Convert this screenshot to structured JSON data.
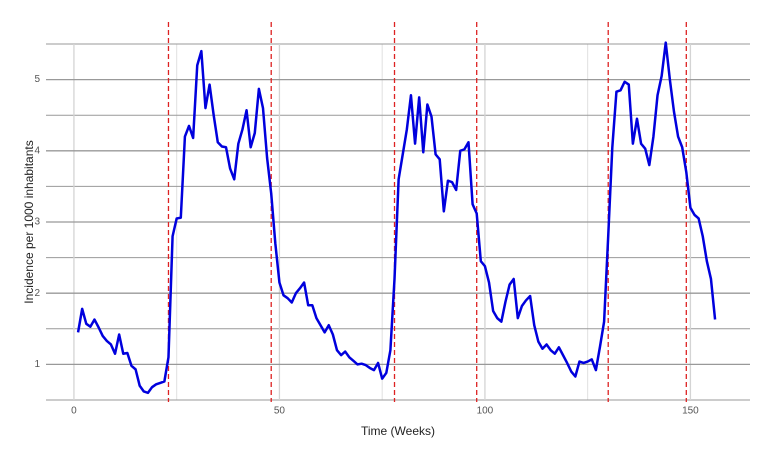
{
  "chart_data": {
    "type": "line",
    "x_label": "Time (Weeks)",
    "y_label": "Incidence per 1000 inhabitants",
    "x": [
      1,
      2,
      3,
      4,
      5,
      6,
      7,
      8,
      9,
      10,
      11,
      12,
      13,
      14,
      15,
      16,
      17,
      18,
      19,
      20,
      21,
      22,
      23,
      24,
      25,
      26,
      27,
      28,
      29,
      30,
      31,
      32,
      33,
      34,
      35,
      36,
      37,
      38,
      39,
      40,
      41,
      42,
      43,
      44,
      45,
      46,
      47,
      48,
      49,
      50,
      51,
      52,
      53,
      54,
      55,
      56,
      57,
      58,
      59,
      60,
      61,
      62,
      63,
      64,
      65,
      66,
      67,
      68,
      69,
      70,
      71,
      72,
      73,
      74,
      75,
      76,
      77,
      78,
      79,
      80,
      81,
      82,
      83,
      84,
      85,
      86,
      87,
      88,
      89,
      90,
      91,
      92,
      93,
      94,
      95,
      96,
      97,
      98,
      99,
      100,
      101,
      102,
      103,
      104,
      105,
      106,
      107,
      108,
      109,
      110,
      111,
      112,
      113,
      114,
      115,
      116,
      117,
      118,
      119,
      120,
      121,
      122,
      123,
      124,
      125,
      126,
      127,
      128,
      129,
      130,
      131,
      132,
      133,
      134,
      135,
      136,
      137,
      138,
      139,
      140,
      141,
      142,
      143,
      144,
      145,
      146,
      147,
      148,
      149,
      150,
      151,
      152,
      153,
      154,
      155,
      156
    ],
    "values": [
      1.45,
      1.78,
      1.57,
      1.53,
      1.63,
      1.52,
      1.4,
      1.33,
      1.28,
      1.15,
      1.42,
      1.15,
      1.16,
      0.98,
      0.93,
      0.7,
      0.62,
      0.6,
      0.68,
      0.72,
      0.74,
      0.76,
      1.1,
      2.8,
      3.05,
      3.06,
      4.2,
      4.35,
      4.18,
      5.2,
      5.4,
      4.6,
      4.93,
      4.5,
      4.12,
      4.06,
      4.05,
      3.75,
      3.6,
      4.1,
      4.3,
      4.57,
      4.05,
      4.25,
      4.87,
      4.6,
      3.9,
      3.4,
      2.7,
      2.15,
      1.97,
      1.93,
      1.87,
      2.0,
      2.07,
      2.15,
      1.83,
      1.83,
      1.65,
      1.55,
      1.45,
      1.55,
      1.42,
      1.2,
      1.13,
      1.18,
      1.1,
      1.05,
      1.0,
      1.01,
      0.99,
      0.95,
      0.92,
      1.02,
      0.8,
      0.88,
      1.2,
      2.2,
      3.6,
      3.95,
      4.3,
      4.78,
      4.1,
      4.75,
      3.98,
      4.65,
      4.48,
      3.95,
      3.88,
      3.15,
      3.58,
      3.56,
      3.45,
      4.0,
      4.02,
      4.12,
      3.25,
      3.12,
      2.45,
      2.38,
      2.15,
      1.75,
      1.65,
      1.6,
      1.88,
      2.12,
      2.2,
      1.65,
      1.82,
      1.9,
      1.96,
      1.55,
      1.32,
      1.22,
      1.28,
      1.2,
      1.15,
      1.24,
      1.13,
      1.02,
      0.9,
      0.83,
      1.04,
      1.02,
      1.04,
      1.07,
      0.92,
      1.25,
      1.6,
      2.8,
      4.05,
      4.83,
      4.85,
      4.97,
      4.93,
      4.1,
      4.45,
      4.1,
      4.03,
      3.8,
      4.2,
      4.78,
      5.05,
      5.52,
      5.0,
      4.55,
      4.2,
      4.05,
      3.7,
      3.2,
      3.1,
      3.05,
      2.8,
      2.45,
      2.2,
      1.63
    ],
    "color": "#0000dd",
    "xlim": [
      -6.8,
      164.5
    ],
    "ylim": [
      0.5,
      5.5
    ],
    "xticks": [
      0,
      50,
      100,
      150
    ],
    "x_minor_ticks": [
      25,
      75,
      125
    ],
    "yticks": [
      1,
      2,
      3,
      4,
      5
    ],
    "y_minor_ticks": [
      0.5,
      1.5,
      2.5,
      3.5,
      4.5,
      5.5
    ],
    "grid": true,
    "vlines": [
      23,
      48,
      78,
      98,
      130,
      149
    ],
    "vline_color": "#dd2222"
  }
}
